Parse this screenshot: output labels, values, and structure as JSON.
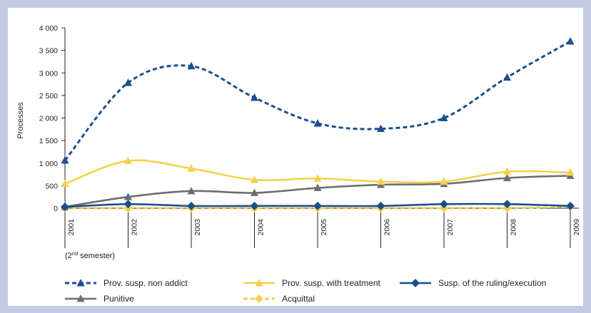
{
  "chart_data": {
    "type": "line",
    "ylabel": "Processes",
    "ylim": [
      0,
      4000
    ],
    "yticks": [
      {
        "value": 0,
        "label": "0"
      },
      {
        "value": 500,
        "label": "500"
      },
      {
        "value": 1000,
        "label": "1 000"
      },
      {
        "value": 1500,
        "label": "1 500"
      },
      {
        "value": 2000,
        "label": "2 000"
      },
      {
        "value": 2500,
        "label": "2 500"
      },
      {
        "value": 3000,
        "label": "3 000"
      },
      {
        "value": 3500,
        "label": "3 500"
      },
      {
        "value": 4000,
        "label": "4 000"
      }
    ],
    "categories": [
      "2001",
      "2002",
      "2003",
      "2004",
      "2005",
      "2006",
      "2007",
      "2008",
      "2009"
    ],
    "footnote": {
      "prefix": "(2",
      "superscript": "nd",
      "suffix": " semester)"
    },
    "grid": false,
    "legend_position": "bottom",
    "series": [
      {
        "name": "Prov. susp. non addict",
        "color": "#1b4f8c",
        "dashed": true,
        "marker": "triangle",
        "values": [
          1060,
          2780,
          3150,
          2450,
          1880,
          1760,
          2000,
          2900,
          3700
        ]
      },
      {
        "name": "Prov. susp. with treatment",
        "color": "#f6d04d",
        "dashed": false,
        "marker": "triangle",
        "values": [
          540,
          1050,
          880,
          630,
          660,
          590,
          590,
          810,
          790
        ]
      },
      {
        "name": "Susp. of the ruling/execution",
        "color": "#1b4f8c",
        "dashed": false,
        "marker": "diamond",
        "values": [
          30,
          90,
          50,
          50,
          50,
          50,
          90,
          90,
          50
        ]
      },
      {
        "name": "Punitive",
        "color": "#6d6e70",
        "dashed": false,
        "marker": "triangle",
        "values": [
          30,
          250,
          380,
          340,
          450,
          520,
          540,
          670,
          720
        ]
      },
      {
        "name": "Acquittal",
        "color": "#f6d04d",
        "dashed": true,
        "marker": "diamond",
        "values": [
          0,
          0,
          0,
          0,
          0,
          0,
          0,
          0,
          40
        ]
      }
    ]
  }
}
